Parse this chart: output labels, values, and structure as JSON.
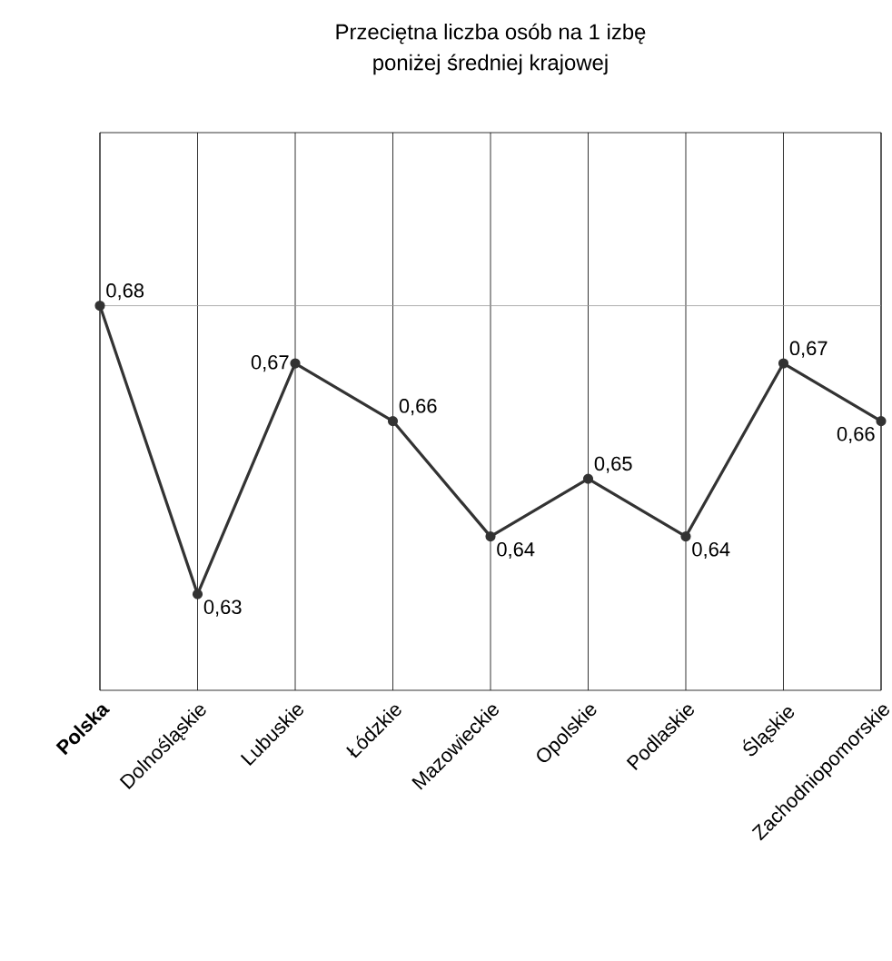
{
  "chart_data": {
    "type": "line",
    "title": "Przeciętna liczba osób na 1 izbę\nponiżej średniej krajowej",
    "categories": [
      "**Polska**",
      "Dolnośląskie",
      "Lubuskie",
      "Łódzkie",
      "Mazowieckie",
      "Opolskie",
      "Podlaskie",
      "Śląskie",
      "Zachodniopomorskie"
    ],
    "series": [
      {
        "color": "#333333",
        "values": [
          0.68,
          0.63,
          0.67,
          0.66,
          0.64,
          0.65,
          0.64,
          0.67,
          0.66
        ],
        "value_labels": [
          "0,68",
          "0,63",
          "0,67",
          "0,66",
          "0,64",
          "0,65",
          "0,64",
          "0,67",
          "0,66"
        ]
      }
    ],
    "ref_lines": [
      {
        "axis": "y",
        "value": 0.68,
        "color": "#999999"
      }
    ],
    "grid": "x",
    "marker": "circle",
    "line_style": "solid",
    "tick_labels": "x"
  }
}
